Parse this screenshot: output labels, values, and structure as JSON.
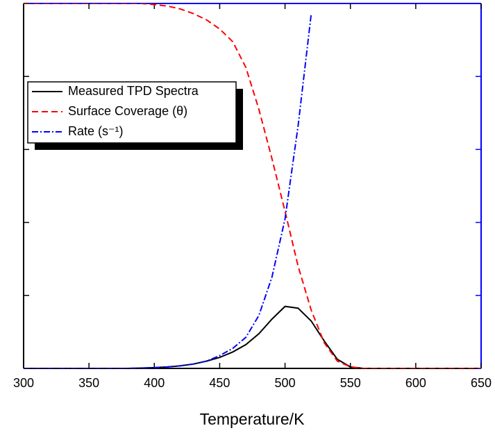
{
  "chart_data": {
    "type": "line",
    "x_label": "Temperature/K",
    "x": [
      300,
      310,
      320,
      330,
      340,
      350,
      360,
      370,
      380,
      390,
      400,
      410,
      420,
      430,
      440,
      450,
      460,
      470,
      480,
      490,
      500,
      510,
      520,
      530,
      540,
      550,
      560,
      570,
      580,
      590,
      600,
      610,
      620,
      630,
      640,
      650
    ],
    "series": [
      {
        "name": "Measured TPD Spectra",
        "color": "#000000",
        "dash": "solid",
        "values": [
          0,
          0,
          0,
          0,
          0,
          0,
          0,
          0,
          0,
          0.001,
          0.002,
          0.004,
          0.007,
          0.012,
          0.02,
          0.03,
          0.045,
          0.065,
          0.095,
          0.135,
          0.17,
          0.165,
          0.13,
          0.075,
          0.025,
          0.004,
          0,
          0,
          0,
          0,
          0,
          0,
          0,
          0,
          0,
          0
        ]
      },
      {
        "name": "Surface Coverage (θ)",
        "color": "#ff0000",
        "dash": "dashed",
        "values": [
          1,
          1,
          1,
          1,
          1,
          1,
          1,
          1,
          1,
          1,
          0.997,
          0.993,
          0.985,
          0.972,
          0.955,
          0.93,
          0.895,
          0.825,
          0.71,
          0.575,
          0.43,
          0.28,
          0.16,
          0.07,
          0.02,
          0.004,
          0,
          0,
          0,
          0,
          0,
          0,
          0,
          0,
          0,
          0
        ]
      },
      {
        "name": "Rate (s⁻¹)",
        "color": "#0000ff",
        "dash": "dashdot",
        "axis": "y2",
        "values": [
          0,
          0,
          0,
          0,
          0,
          0,
          0,
          0,
          0,
          0.001,
          0.002,
          0.004,
          0.007,
          0.012,
          0.02,
          0.035,
          0.055,
          0.085,
          0.145,
          0.25,
          0.41,
          0.665,
          0.97,
          null,
          null,
          null,
          null,
          null,
          null,
          null,
          null,
          null,
          null,
          null,
          null,
          null
        ]
      }
    ],
    "xlim": [
      300,
      650
    ],
    "xticks": [
      300,
      350,
      400,
      450,
      500,
      550,
      600,
      650
    ],
    "ylim": [
      0,
      1
    ],
    "yticks": [
      0,
      0.2,
      0.4,
      0.6,
      0.8,
      1
    ],
    "y2lim": [
      0,
      1
    ],
    "y2ticks": [
      0,
      0.2,
      0.4,
      0.6,
      0.8
    ],
    "y2_color": "#0000ff",
    "legend": "upper-left"
  }
}
